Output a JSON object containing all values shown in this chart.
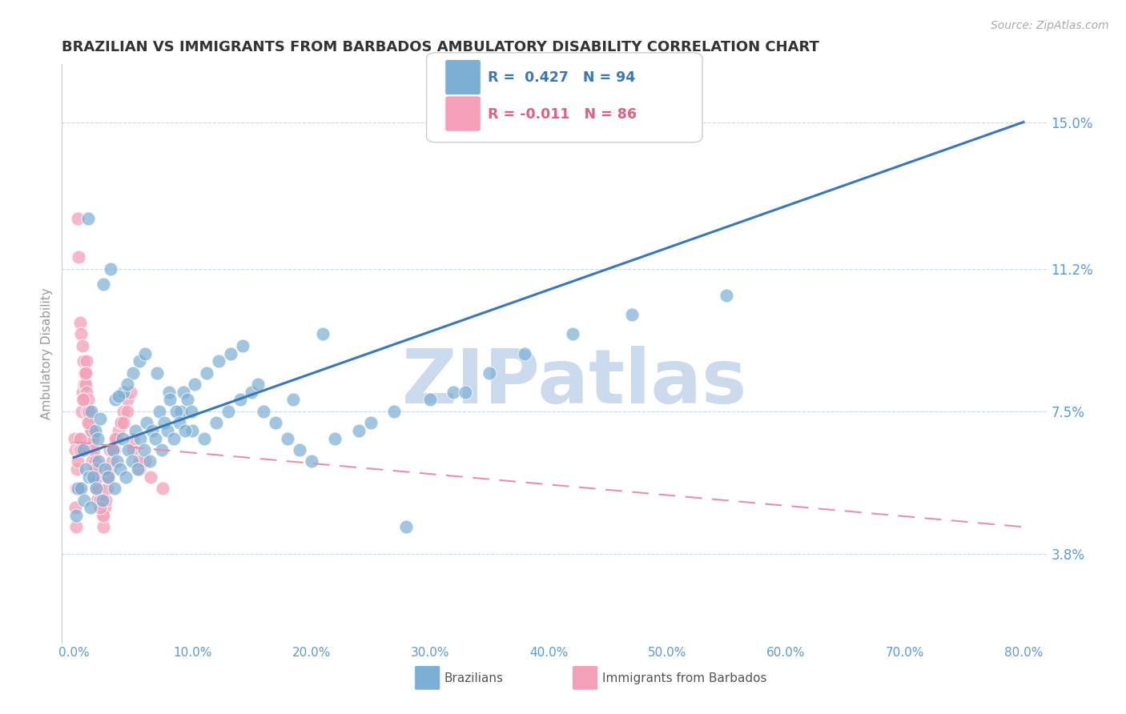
{
  "title": "BRAZILIAN VS IMMIGRANTS FROM BARBADOS AMBULATORY DISABILITY CORRELATION CHART",
  "source": "Source: ZipAtlas.com",
  "xlabel_ticks": [
    "0.0%",
    "10.0%",
    "20.0%",
    "30.0%",
    "40.0%",
    "50.0%",
    "60.0%",
    "70.0%",
    "80.0%"
  ],
  "xlabel_vals": [
    0.0,
    10.0,
    20.0,
    30.0,
    40.0,
    50.0,
    60.0,
    70.0,
    80.0
  ],
  "ylabel": "Ambulatory Disability",
  "ytick_labels": [
    "3.8%",
    "7.5%",
    "11.2%",
    "15.0%"
  ],
  "ytick_vals": [
    3.8,
    7.5,
    11.2,
    15.0
  ],
  "ylim": [
    1.5,
    16.5
  ],
  "xlim": [
    -1.0,
    82.0
  ],
  "blue_color": "#7bafd4",
  "pink_color": "#f4a0b8",
  "blue_line_color": "#3878b8",
  "pink_line_color": "#e890a8",
  "watermark": "ZIPatlas",
  "watermark_color": "#ccdaee",
  "background_color": "#ffffff",
  "grid_color": "#c8d8ee",
  "title_color": "#333333",
  "axis_label_color": "#5b9bd5",
  "blue_line_start_y": 6.3,
  "blue_line_end_y": 15.0,
  "pink_line_start_y": 6.7,
  "pink_line_end_y": 4.5,
  "brazil_x": [
    0.3,
    0.8,
    1.2,
    1.5,
    1.8,
    2.0,
    2.5,
    3.1,
    3.5,
    4.2,
    5.0,
    1.0,
    2.2,
    3.8,
    4.5,
    5.5,
    6.0,
    7.0,
    8.0,
    9.0,
    10.0,
    11.0,
    12.0,
    13.0,
    14.0,
    15.0,
    16.0,
    17.0,
    18.0,
    19.0,
    20.0,
    22.0,
    24.0,
    25.0,
    27.0,
    30.0,
    32.0,
    35.0,
    1.3,
    2.1,
    3.3,
    4.1,
    5.2,
    6.1,
    7.2,
    8.1,
    9.2,
    10.2,
    11.2,
    12.2,
    13.2,
    14.2,
    0.6,
    1.6,
    2.6,
    3.6,
    4.6,
    5.6,
    6.6,
    7.6,
    8.6,
    9.6,
    0.9,
    1.9,
    2.9,
    3.9,
    4.9,
    5.9,
    6.9,
    7.9,
    8.9,
    9.9,
    0.2,
    1.4,
    2.4,
    3.4,
    4.4,
    5.4,
    6.4,
    7.4,
    8.4,
    9.4,
    15.5,
    18.5,
    21.0,
    28.0,
    38.0,
    42.0,
    47.0,
    33.0,
    55.0
  ],
  "brazil_y": [
    5.5,
    6.5,
    12.5,
    7.5,
    7.0,
    6.8,
    10.8,
    11.2,
    7.8,
    8.0,
    8.5,
    6.0,
    7.3,
    7.9,
    8.2,
    8.8,
    9.0,
    8.5,
    8.0,
    7.5,
    7.0,
    6.8,
    7.2,
    7.5,
    7.8,
    8.0,
    7.5,
    7.2,
    6.8,
    6.5,
    6.2,
    6.8,
    7.0,
    7.2,
    7.5,
    7.8,
    8.0,
    8.5,
    5.8,
    6.2,
    6.5,
    6.8,
    7.0,
    7.2,
    7.5,
    7.8,
    8.0,
    8.2,
    8.5,
    8.8,
    9.0,
    9.2,
    5.5,
    5.8,
    6.0,
    6.2,
    6.5,
    6.8,
    7.0,
    7.2,
    7.5,
    7.8,
    5.2,
    5.5,
    5.8,
    6.0,
    6.2,
    6.5,
    6.8,
    7.0,
    7.2,
    7.5,
    4.8,
    5.0,
    5.2,
    5.5,
    5.8,
    6.0,
    6.2,
    6.5,
    6.8,
    7.0,
    8.2,
    7.8,
    9.5,
    4.5,
    9.0,
    9.5,
    10.0,
    8.0,
    10.5
  ],
  "barbados_x": [
    0.05,
    0.1,
    0.15,
    0.2,
    0.25,
    0.3,
    0.35,
    0.4,
    0.45,
    0.5,
    0.55,
    0.6,
    0.65,
    0.7,
    0.75,
    0.8,
    0.85,
    0.9,
    0.95,
    1.0,
    1.05,
    1.1,
    1.15,
    1.2,
    1.25,
    1.3,
    1.35,
    1.4,
    1.45,
    1.5,
    1.55,
    1.6,
    1.65,
    1.7,
    1.75,
    1.8,
    1.85,
    1.9,
    1.95,
    2.0,
    2.1,
    2.2,
    2.3,
    2.4,
    2.5,
    2.6,
    2.7,
    2.8,
    2.9,
    3.0,
    3.2,
    3.4,
    3.6,
    3.8,
    4.0,
    4.2,
    4.5,
    4.8,
    5.0,
    5.5,
    6.0,
    0.3,
    0.5,
    0.7,
    1.0,
    1.5,
    2.0,
    2.5,
    3.0,
    3.5,
    4.0,
    4.5,
    5.0,
    0.2,
    0.4,
    0.6,
    0.8,
    1.2,
    1.8,
    2.2,
    2.8,
    3.3,
    4.2,
    5.5,
    6.5,
    7.5
  ],
  "barbados_y": [
    6.8,
    6.5,
    5.0,
    5.5,
    6.0,
    12.5,
    6.2,
    11.5,
    6.5,
    9.8,
    6.8,
    9.5,
    7.5,
    9.2,
    8.0,
    8.8,
    8.2,
    8.5,
    8.5,
    8.2,
    8.8,
    8.0,
    7.5,
    7.8,
    7.2,
    7.5,
    6.8,
    7.0,
    6.5,
    7.0,
    6.2,
    6.8,
    6.0,
    6.5,
    5.8,
    6.2,
    5.5,
    6.0,
    5.2,
    5.8,
    5.5,
    5.2,
    5.0,
    4.8,
    4.5,
    5.0,
    5.2,
    5.5,
    5.8,
    6.0,
    6.2,
    6.5,
    6.8,
    7.0,
    7.2,
    7.5,
    7.8,
    8.0,
    6.5,
    6.0,
    6.2,
    5.5,
    6.8,
    7.8,
    8.5,
    7.0,
    5.8,
    4.8,
    6.5,
    6.8,
    7.2,
    7.5,
    6.8,
    4.5,
    5.5,
    6.5,
    7.8,
    7.2,
    6.0,
    5.0,
    5.8,
    6.5,
    7.2,
    6.2,
    5.8,
    5.5
  ]
}
